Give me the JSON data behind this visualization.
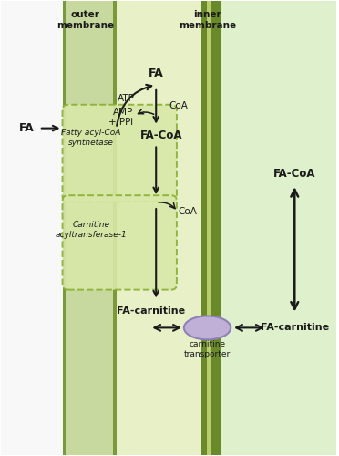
{
  "fig_width": 3.72,
  "fig_height": 5.0,
  "bg_color": "#ffffff",
  "outer_membrane_color": "#c8d9a0",
  "outer_membrane_dark": "#7a9a3a",
  "inner_region_color": "#e8f0c8",
  "inner_membrane_dark": "#6a8a2a",
  "inner_membrane_light": "#b8cc70",
  "right_bg_color": "#dff0cc",
  "dashed_box_color": "#8ab030",
  "dashed_box_fill": "#d8e8a8",
  "transporter_color": "#c0b0d8",
  "transporter_edge": "#9080b8",
  "text_color": "#1a1a1a",
  "arrow_color": "#1a1a1a",
  "outer_mem_label": "outer\nmembrane",
  "inner_mem_label": "inner\nmembrane",
  "fa_label_left": "FA",
  "fa_label_inner": "FA",
  "atp_label": "ATP",
  "coa_label1": "CoA",
  "amp_label": "AMP\n+ PPi",
  "fa_coa_label": "FA-CoA",
  "coa_label2": "CoA",
  "fa_carnitine_left": "FA-carnitine",
  "fa_carnitine_right": "FA-carnitine",
  "fa_coa_right": "FA-CoA",
  "transporter_label": "carnitine\ntransporter",
  "enzyme1_label": "Fatty acyl-CoA\nsynthetase",
  "enzyme2_label": "Carnitine\nacyltransferase-1"
}
